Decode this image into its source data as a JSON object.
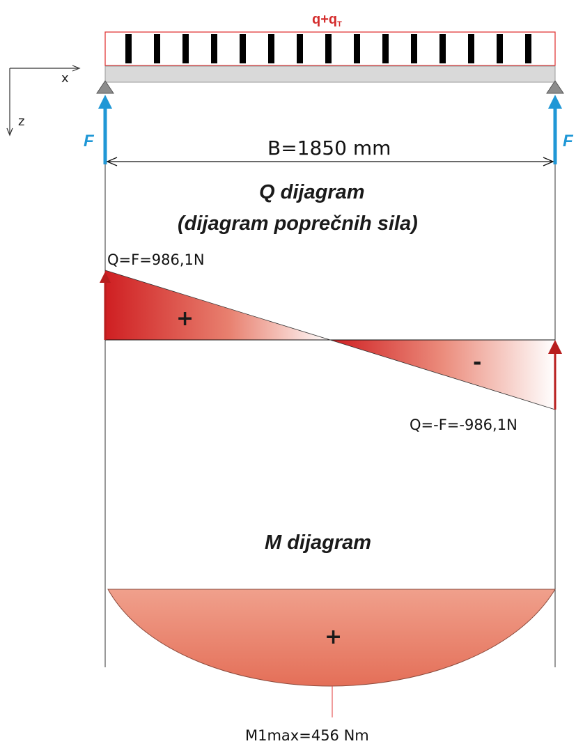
{
  "load": {
    "label_main": "q+q",
    "label_sub": "T"
  },
  "axes": {
    "x_label": "x",
    "z_label": "z"
  },
  "supports": {
    "left_force_label": "F",
    "right_force_label": "F"
  },
  "span": {
    "label": "B=1850 mm"
  },
  "shear_diagram": {
    "title_line1": "Q dijagram",
    "title_line2": "(dijagram poprečnih sila)",
    "max_label": "Q=F=986,1N",
    "min_label": "Q=-F=-986,1N",
    "positive_sign": "+",
    "negative_sign": "-"
  },
  "moment_diagram": {
    "title": "M dijagram",
    "positive_sign": "+",
    "max_label": "M1max=456 Nm"
  },
  "colors": {
    "load_outline": "#e23a3a",
    "force_arrow": "#1f97d6",
    "shear_fill": "#d9262a",
    "moment_fill": "#e97862",
    "beam": "#d9d9d9"
  }
}
